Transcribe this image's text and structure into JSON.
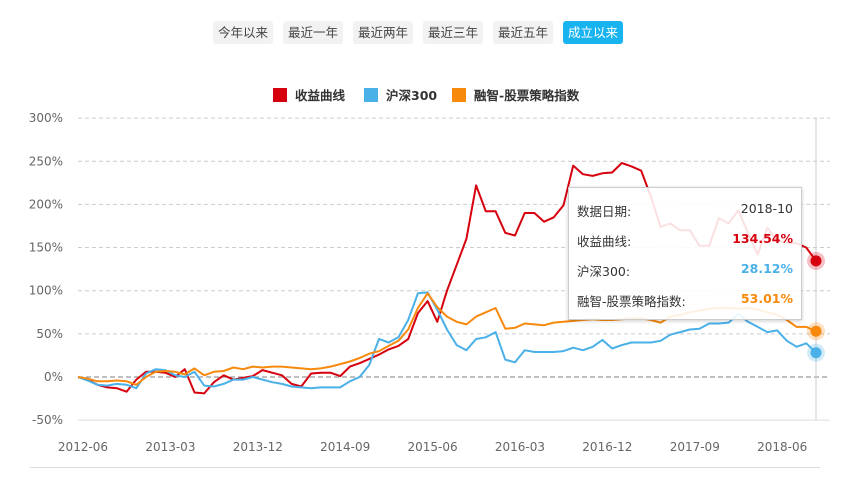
{
  "range_buttons": [
    {
      "label": "今年以来",
      "active": false
    },
    {
      "label": "最近一年",
      "active": false
    },
    {
      "label": "最近两年",
      "active": false
    },
    {
      "label": "最近三年",
      "active": false
    },
    {
      "label": "最近五年",
      "active": false
    },
    {
      "label": "成立以来",
      "active": true
    }
  ],
  "tooltip": {
    "date_label": "数据日期:",
    "date_value": "2018-10",
    "rows": [
      {
        "label": "收益曲线:",
        "value": "134.54%",
        "color": "#d7000f"
      },
      {
        "label": "沪深300:",
        "value": "28.12%",
        "color": "#4ab0e8"
      },
      {
        "label": "融智-股票策略指数:",
        "value": "53.01%",
        "color": "#f7890c"
      }
    ]
  },
  "chart_data": {
    "type": "line",
    "title": "",
    "xlabel": "",
    "ylabel": "",
    "ylim": [
      -50,
      300
    ],
    "y_ticks": [
      "-50%",
      "0%",
      "50%",
      "100%",
      "150%",
      "200%",
      "250%",
      "300%"
    ],
    "y_tick_values": [
      -50,
      0,
      50,
      100,
      150,
      200,
      250,
      300
    ],
    "x_start": "2012-06",
    "x_end": "2018-10",
    "x_frequency": "monthly",
    "x_tick_labels": [
      "2012-06",
      "2013-03",
      "2013-12",
      "2014-09",
      "2015-06",
      "2016-03",
      "2016-12",
      "2017-09",
      "2018-06"
    ],
    "grid": true,
    "legend": "top-center",
    "series": [
      {
        "name": "收益曲线",
        "color": "#d7000f",
        "values": [
          0,
          -3,
          -9,
          -12,
          -13,
          -17,
          -3,
          6,
          6,
          5,
          0,
          9,
          -18,
          -19,
          -6,
          2,
          -3,
          -1,
          1,
          8,
          5,
          2,
          -8,
          -11,
          4,
          5,
          5,
          1,
          12,
          16,
          21,
          26,
          32,
          36,
          44,
          74,
          88,
          64,
          100,
          130,
          160,
          222,
          192,
          192,
          167,
          164,
          190,
          190,
          180,
          185,
          199,
          245,
          235,
          233,
          236,
          237,
          248,
          244,
          239,
          209,
          174,
          178,
          170,
          170,
          152,
          152,
          184,
          178,
          193,
          167,
          142,
          173,
          158,
          156,
          155,
          150,
          134.54
        ]
      },
      {
        "name": "沪深300",
        "color": "#4ab0e8",
        "values": [
          0,
          -4,
          -9,
          -10,
          -8,
          -9,
          -13,
          4,
          9,
          8,
          2,
          0,
          6,
          -10,
          -11,
          -8,
          -3,
          -3,
          0,
          -3,
          -6,
          -8,
          -11,
          -12,
          -13,
          -12,
          -12,
          -12,
          -5,
          0,
          14,
          44,
          40,
          46,
          66,
          97,
          98,
          78,
          55,
          37,
          31,
          44,
          46,
          52,
          20,
          17,
          31,
          29,
          29,
          29,
          30,
          34,
          31,
          35,
          43,
          33,
          37,
          40,
          40,
          40,
          42,
          49,
          52,
          55,
          56,
          62,
          62,
          63,
          73,
          64,
          58,
          52,
          54,
          42,
          35,
          39,
          28.12
        ]
      },
      {
        "name": "融智-股票策略指数",
        "color": "#f7890c",
        "values": [
          0,
          -2,
          -5,
          -5,
          -4,
          -5,
          -9,
          0,
          6,
          7,
          6,
          3,
          10,
          2,
          6,
          7,
          11,
          9,
          12,
          11,
          12,
          12,
          11,
          10,
          9,
          10,
          12,
          15,
          18,
          22,
          27,
          30,
          36,
          42,
          55,
          80,
          97,
          81,
          70,
          64,
          61,
          70,
          75,
          80,
          56,
          57,
          62,
          61,
          60,
          63,
          64,
          65,
          66,
          67,
          66,
          66,
          67,
          68,
          68,
          66,
          63,
          70,
          72,
          75,
          77,
          79,
          80,
          80,
          79,
          80,
          78,
          75,
          72,
          66,
          58,
          58,
          53.01
        ]
      }
    ]
  }
}
